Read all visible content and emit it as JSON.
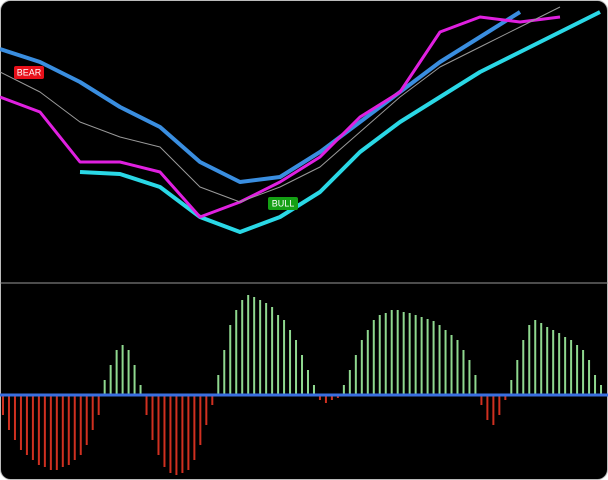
{
  "chart_data": [
    {
      "type": "line",
      "annotations": [
        "BEAR",
        "BULL"
      ],
      "x": [
        0,
        40,
        80,
        120,
        160,
        200,
        240,
        280,
        320,
        360,
        400,
        440,
        480,
        520,
        560,
        600
      ],
      "xlim": [
        0,
        608
      ],
      "ylim": [
        0,
        280
      ],
      "series": [
        {
          "color": "#3a8ee0",
          "values": [
            233,
            220,
            200,
            175,
            155,
            120,
            100,
            105,
            130,
            160,
            190,
            220,
            245,
            270,
            null,
            null
          ]
        },
        {
          "color": "#2ad8e6",
          "values": [
            null,
            null,
            110,
            108,
            95,
            65,
            50,
            65,
            90,
            130,
            160,
            185,
            210,
            230,
            250,
            270
          ]
        },
        {
          "color": "#e020e0",
          "values": [
            185,
            170,
            120,
            120,
            110,
            65,
            80,
            100,
            125,
            165,
            190,
            250,
            265,
            260,
            265,
            null
          ]
        },
        {
          "color": "#9a9a9a",
          "values": [
            210,
            190,
            160,
            145,
            135,
            95,
            80,
            95,
            115,
            150,
            185,
            215,
            235,
            255,
            275,
            null
          ]
        }
      ]
    },
    {
      "type": "bar",
      "up_color": "#8fd88f",
      "down_color": "#d03020",
      "zero_color": "#3a6fe0",
      "ylim": [
        -80,
        105
      ],
      "values": [
        -20,
        -35,
        -45,
        -55,
        -60,
        -65,
        -70,
        -72,
        -75,
        -75,
        -72,
        -70,
        -65,
        -60,
        -50,
        -35,
        -20,
        15,
        30,
        45,
        50,
        45,
        30,
        10,
        -20,
        -45,
        -60,
        -72,
        -78,
        -80,
        -78,
        -75,
        -65,
        -50,
        -30,
        -10,
        20,
        45,
        70,
        85,
        95,
        100,
        98,
        95,
        92,
        88,
        80,
        75,
        65,
        55,
        40,
        25,
        10,
        -5,
        -8,
        -5,
        -3,
        10,
        25,
        40,
        55,
        65,
        75,
        80,
        82,
        85,
        85,
        83,
        82,
        80,
        78,
        76,
        74,
        70,
        65,
        60,
        55,
        45,
        35,
        20,
        -10,
        -25,
        -30,
        -20,
        -5,
        15,
        35,
        55,
        70,
        75,
        72,
        68,
        65,
        62,
        58,
        55,
        50,
        45,
        35,
        20,
        10
      ]
    }
  ]
}
